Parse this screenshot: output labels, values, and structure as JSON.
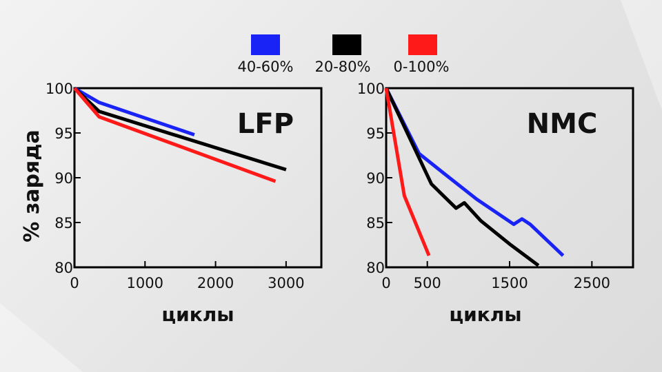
{
  "legend": [
    {
      "label": "40-60%",
      "color": "#1a23f5"
    },
    {
      "label": "20-80%",
      "color": "#000000"
    },
    {
      "label": "0-100%",
      "color": "#ff1a1a"
    }
  ],
  "ylabel": "% заряда",
  "chart_data": [
    {
      "type": "line",
      "title": "LFP",
      "xlabel": "циклы",
      "xlim": [
        0,
        3500
      ],
      "ylim": [
        80,
        100
      ],
      "xticks": [
        0,
        1000,
        2000,
        3000
      ],
      "yticks": [
        80,
        85,
        90,
        95,
        100
      ],
      "series": [
        {
          "name": "40-60%",
          "color": "#1a23f5",
          "x": [
            0,
            350,
            1700
          ],
          "y": [
            100,
            98.4,
            94.8
          ]
        },
        {
          "name": "20-80%",
          "color": "#000000",
          "x": [
            0,
            350,
            3000
          ],
          "y": [
            100,
            97.4,
            90.9
          ]
        },
        {
          "name": "0-100%",
          "color": "#ff1a1a",
          "x": [
            0,
            350,
            2850
          ],
          "y": [
            100,
            96.8,
            89.6
          ]
        }
      ]
    },
    {
      "type": "line",
      "title": "NMC",
      "xlabel": "циклы",
      "xlim": [
        0,
        3000
      ],
      "ylim": [
        80,
        100
      ],
      "xticks": [
        0,
        500,
        1500,
        2500
      ],
      "yticks": [
        80,
        85,
        90,
        95,
        100
      ],
      "series": [
        {
          "name": "40-60%",
          "color": "#1a23f5",
          "x": [
            0,
            400,
            700,
            1100,
            1550,
            1650,
            1750,
            2150
          ],
          "y": [
            100,
            92.7,
            90.5,
            87.6,
            84.8,
            85.4,
            84.8,
            81.3
          ]
        },
        {
          "name": "20-80%",
          "color": "#000000",
          "x": [
            0,
            550,
            850,
            950,
            1150,
            1500,
            1850
          ],
          "y": [
            100,
            89.3,
            86.6,
            87.2,
            85.2,
            82.6,
            80.2
          ]
        },
        {
          "name": "0-100%",
          "color": "#ff1a1a",
          "x": [
            0,
            220,
            520
          ],
          "y": [
            100,
            88,
            81.3
          ]
        }
      ]
    }
  ]
}
